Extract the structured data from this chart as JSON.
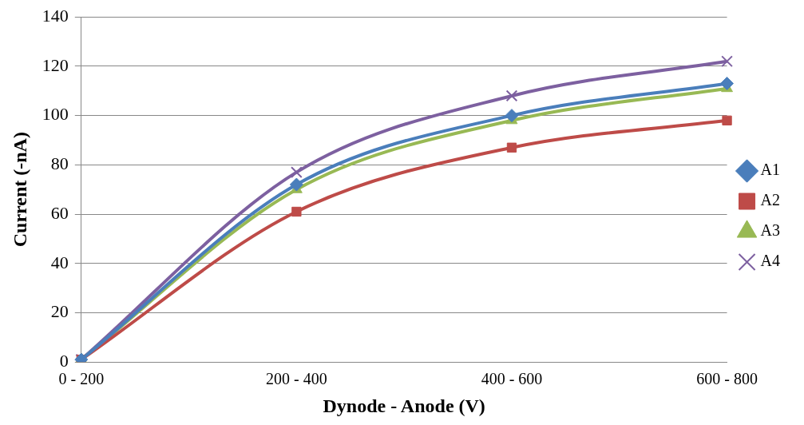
{
  "chart_data": {
    "type": "line",
    "xlabel": "Dynode - Anode (V)",
    "ylabel": "Current (-nA)",
    "categories": [
      "0 - 200",
      "200 - 400",
      "400 - 600",
      "600 - 800"
    ],
    "series": [
      {
        "name": "A1",
        "color": "#4a7ebb",
        "marker": "diamond",
        "values": [
          1,
          72,
          100,
          113
        ]
      },
      {
        "name": "A2",
        "color": "#be4b48",
        "marker": "square",
        "values": [
          1,
          61,
          87,
          98
        ]
      },
      {
        "name": "A3",
        "color": "#98b954",
        "marker": "triangle",
        "values": [
          1,
          70,
          98,
          111
        ]
      },
      {
        "name": "A4",
        "color": "#7d60a0",
        "marker": "cross",
        "values": [
          1,
          77,
          108,
          122
        ]
      }
    ],
    "ylim": [
      0,
      140
    ],
    "yticks": [
      0,
      20,
      40,
      60,
      80,
      100,
      120,
      140
    ],
    "grid": "y",
    "legend": "right",
    "line_style": "solid"
  }
}
